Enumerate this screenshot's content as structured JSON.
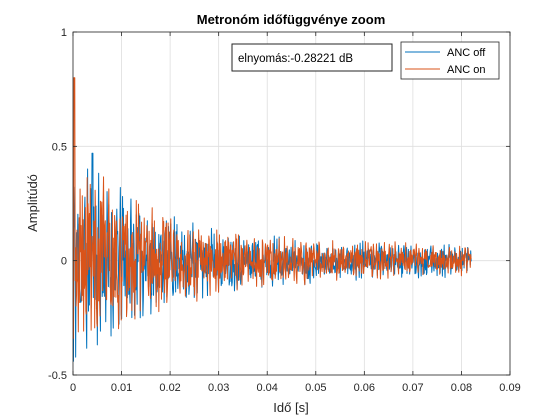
{
  "chart_data": {
    "type": "line",
    "title": "Metronóm időfüggvénye zoom",
    "xlabel": "Idő [s]",
    "ylabel": "Amplitúdó",
    "xlim": [
      0,
      0.09
    ],
    "ylim": [
      -0.5,
      1
    ],
    "xticks": [
      "0",
      "0.01",
      "0.02",
      "0.03",
      "0.04",
      "0.05",
      "0.06",
      "0.07",
      "0.08",
      "0.09"
    ],
    "yticks": [
      "-0.5",
      "0",
      "0.5",
      "1"
    ],
    "grid": true,
    "legend_position": "top-right",
    "annotation": "elnyomás:-0.28221 dB",
    "series": [
      {
        "name": "ANC off",
        "color": "#0072bd",
        "signal": {
          "t_start": 0,
          "t_end": 0.082,
          "samples": 900,
          "peak": 0.47,
          "peak_time": 0.004,
          "min": -0.44,
          "tail_amplitude": 0.05
        }
      },
      {
        "name": "ANC on",
        "color": "#d95319",
        "signal": {
          "t_start": 0,
          "t_end": 0.082,
          "samples": 900,
          "peak": 0.8,
          "peak_time": 0.0003,
          "min": -0.34,
          "tail_amplitude": 0.05
        }
      }
    ]
  }
}
